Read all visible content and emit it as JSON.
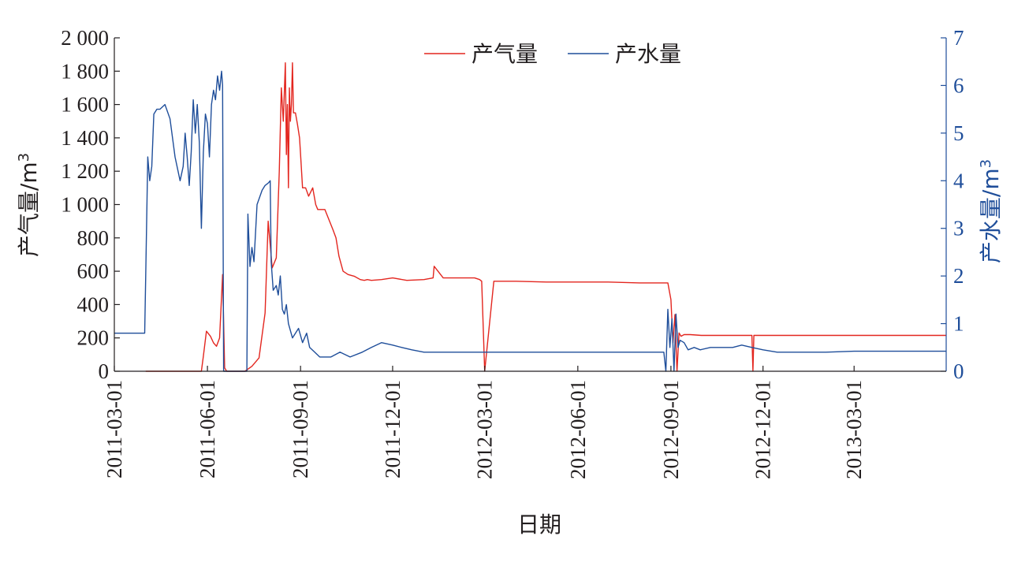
{
  "chart_data": {
    "type": "line",
    "x_axis": {
      "label": "日期",
      "type": "date",
      "range": [
        "2011-03-01",
        "2013-05-31"
      ],
      "ticks": [
        "2011-03-01",
        "2011-06-01",
        "2011-09-01",
        "2011-12-01",
        "2012-03-01",
        "2012-06-01",
        "2012-09-01",
        "2012-12-01",
        "2013-03-01"
      ]
    },
    "y_left": {
      "label": "产气量/m3",
      "range": [
        0,
        2000
      ],
      "ticks": [
        0,
        200,
        400,
        600,
        800,
        1000,
        1200,
        1400,
        1600,
        1800,
        2000
      ],
      "tick_labels": [
        "0",
        "200",
        "400",
        "600",
        "800",
        "1 000",
        "1 200",
        "1 400",
        "1 600",
        "1 800",
        "2 000"
      ]
    },
    "y_right": {
      "label": "产水量/m3",
      "range": [
        0,
        7
      ],
      "ticks": [
        0,
        1,
        2,
        3,
        4,
        5,
        6,
        7
      ],
      "tick_labels": [
        "0",
        "1",
        "2",
        "3",
        "4",
        "5",
        "6",
        "7"
      ],
      "color": "#1f4e9a"
    },
    "legend": {
      "position": "top-center"
    },
    "grid": false,
    "series": [
      {
        "name": "产气量",
        "axis": "left",
        "color": "#e3261f",
        "x": [
          "2011-04-01",
          "2011-05-26",
          "2011-05-28",
          "2011-05-31",
          "2011-06-04",
          "2011-06-07",
          "2011-06-10",
          "2011-06-13",
          "2011-06-16",
          "2011-06-18",
          "2011-06-20",
          "2011-06-22",
          "2011-07-01",
          "2011-07-08",
          "2011-07-15",
          "2011-07-22",
          "2011-07-28",
          "2011-07-31",
          "2011-08-04",
          "2011-08-08",
          "2011-08-11",
          "2011-08-13",
          "2011-08-15",
          "2011-08-17",
          "2011-08-18",
          "2011-08-19",
          "2011-08-20",
          "2011-08-21",
          "2011-08-22",
          "2011-08-23",
          "2011-08-24",
          "2011-08-25",
          "2011-08-27",
          "2011-08-29",
          "2011-08-31",
          "2011-09-01",
          "2011-09-03",
          "2011-09-06",
          "2011-09-09",
          "2011-09-13",
          "2011-09-16",
          "2011-09-18",
          "2011-09-25",
          "2011-10-03",
          "2011-10-06",
          "2011-10-09",
          "2011-10-13",
          "2011-10-18",
          "2011-10-24",
          "2011-10-30",
          "2011-11-03",
          "2011-11-06",
          "2011-11-10",
          "2011-11-20",
          "2011-12-01",
          "2011-12-15",
          "2012-01-01",
          "2012-01-10",
          "2012-01-11",
          "2012-01-20",
          "2012-02-10",
          "2012-02-20",
          "2012-02-25",
          "2012-02-27",
          "2012-03-01",
          "2012-03-10",
          "2012-04-01",
          "2012-05-01",
          "2012-06-01",
          "2012-07-01",
          "2012-08-01",
          "2012-08-28",
          "2012-08-29",
          "2012-09-01",
          "2012-09-03",
          "2012-09-05",
          "2012-09-07",
          "2012-09-09",
          "2012-09-11",
          "2012-09-14",
          "2012-09-17",
          "2012-09-20",
          "2012-10-01",
          "2012-11-01",
          "2012-11-20",
          "2012-11-21",
          "2012-11-22",
          "2012-11-24",
          "2012-12-01",
          "2013-01-01",
          "2013-03-01",
          "2013-05-31"
        ],
        "values": [
          0,
          0,
          90,
          240,
          210,
          170,
          150,
          200,
          580,
          20,
          0,
          0,
          0,
          0,
          30,
          80,
          350,
          900,
          620,
          680,
          1200,
          1700,
          1500,
          1850,
          1300,
          1600,
          1100,
          1700,
          1500,
          1600,
          1850,
          1550,
          1550,
          1480,
          1400,
          1300,
          1100,
          1100,
          1050,
          1100,
          1000,
          970,
          970,
          850,
          800,
          690,
          600,
          580,
          570,
          550,
          545,
          550,
          545,
          550,
          560,
          545,
          550,
          560,
          630,
          560,
          560,
          560,
          550,
          540,
          0,
          540,
          540,
          535,
          535,
          535,
          530,
          530,
          530,
          430,
          170,
          340,
          0,
          230,
          210,
          220,
          220,
          220,
          215,
          215,
          215,
          0,
          215,
          215,
          215,
          215,
          215,
          215
        ]
      },
      {
        "name": "产水量",
        "axis": "right",
        "color": "#1f4e9a",
        "x": [
          "2011-03-01",
          "2011-03-31",
          "2011-04-01",
          "2011-04-03",
          "2011-04-05",
          "2011-04-07",
          "2011-04-09",
          "2011-04-12",
          "2011-04-15",
          "2011-04-20",
          "2011-04-25",
          "2011-04-30",
          "2011-05-05",
          "2011-05-08",
          "2011-05-10",
          "2011-05-12",
          "2011-05-14",
          "2011-05-16",
          "2011-05-18",
          "2011-05-20",
          "2011-05-22",
          "2011-05-24",
          "2011-05-26",
          "2011-05-28",
          "2011-05-30",
          "2011-06-01",
          "2011-06-03",
          "2011-06-05",
          "2011-06-07",
          "2011-06-09",
          "2011-06-11",
          "2011-06-13",
          "2011-06-15",
          "2011-06-16",
          "2011-06-17",
          "2011-06-20",
          "2011-07-01",
          "2011-07-10",
          "2011-07-11",
          "2011-07-13",
          "2011-07-15",
          "2011-07-17",
          "2011-07-20",
          "2011-07-25",
          "2011-07-28",
          "2011-07-31",
          "2011-08-02",
          "2011-08-03",
          "2011-08-05",
          "2011-08-08",
          "2011-08-10",
          "2011-08-12",
          "2011-08-14",
          "2011-08-16",
          "2011-08-18",
          "2011-08-20",
          "2011-08-24",
          "2011-08-27",
          "2011-08-30",
          "2011-09-03",
          "2011-09-07",
          "2011-09-10",
          "2011-09-15",
          "2011-09-20",
          "2011-10-01",
          "2011-10-10",
          "2011-10-20",
          "2011-11-01",
          "2011-11-10",
          "2011-11-20",
          "2011-12-01",
          "2011-12-10",
          "2011-12-20",
          "2012-01-01",
          "2012-01-15",
          "2012-02-01",
          "2012-03-01",
          "2012-04-01",
          "2012-05-01",
          "2012-06-01",
          "2012-07-01",
          "2012-08-01",
          "2012-08-25",
          "2012-08-27",
          "2012-08-29",
          "2012-08-31",
          "2012-09-02",
          "2012-09-04",
          "2012-09-06",
          "2012-09-08",
          "2012-09-10",
          "2012-09-14",
          "2012-09-18",
          "2012-09-24",
          "2012-09-30",
          "2012-10-10",
          "2012-10-20",
          "2012-11-01",
          "2012-11-10",
          "2012-11-20",
          "2012-12-01",
          "2012-12-15",
          "2013-01-01",
          "2013-02-01",
          "2013-03-01",
          "2013-04-01",
          "2013-05-31"
        ],
        "values": [
          0.8,
          0.8,
          2.0,
          4.5,
          4.0,
          4.3,
          5.4,
          5.5,
          5.5,
          5.6,
          5.3,
          4.5,
          4.0,
          4.3,
          5.0,
          4.5,
          3.9,
          4.6,
          5.7,
          5.0,
          5.6,
          4.8,
          3.0,
          4.6,
          5.4,
          5.2,
          4.5,
          5.6,
          5.9,
          5.7,
          6.2,
          5.9,
          6.3,
          6.0,
          0,
          0,
          0,
          0,
          3.3,
          2.2,
          2.6,
          2.3,
          3.5,
          3.8,
          3.9,
          3.95,
          4.0,
          2.3,
          1.7,
          1.8,
          1.6,
          2.0,
          1.3,
          1.2,
          1.4,
          1.0,
          0.7,
          0.8,
          0.9,
          0.6,
          0.8,
          0.5,
          0.4,
          0.3,
          0.3,
          0.4,
          0.3,
          0.4,
          0.5,
          0.6,
          0.55,
          0.5,
          0.45,
          0.4,
          0.4,
          0.4,
          0.4,
          0.4,
          0.4,
          0.4,
          0.4,
          0.4,
          0.4,
          0,
          1.3,
          0.5,
          1.1,
          0,
          1.2,
          0.5,
          0.65,
          0.6,
          0.45,
          0.5,
          0.45,
          0.5,
          0.5,
          0.5,
          0.55,
          0.5,
          0.45,
          0.4,
          0.4,
          0.4,
          0.42,
          0.42,
          0.42
        ]
      }
    ]
  }
}
